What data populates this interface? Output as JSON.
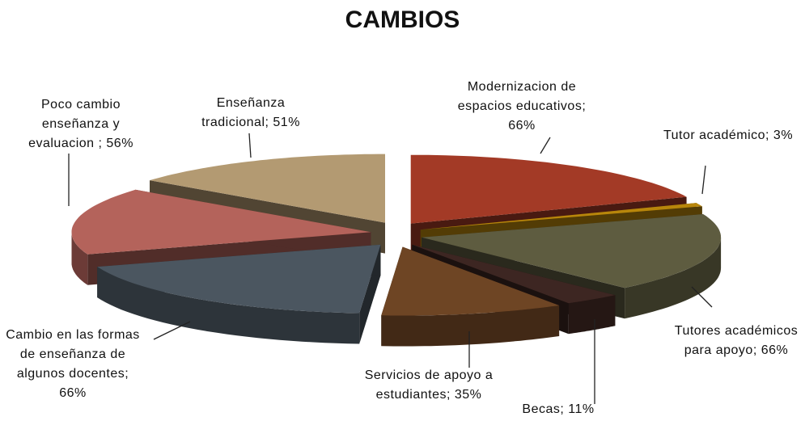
{
  "chart_data": {
    "type": "pie",
    "title": "CAMBIOS",
    "values": [
      66,
      3,
      66,
      11,
      35,
      66,
      56,
      51
    ],
    "value_labels": [
      "Modernizacion de espacios educativos; 66%",
      "Tutor académico; 3%",
      "Tutores académicos para apoyo; 66%",
      "Becas; 11%",
      "Servicios de apoyo a estudiantes; 35%",
      "Cambio en las formas de enseñanza de algunos docentes; 66%",
      "Poco cambio enseñanza y evaluacion ; 56%",
      "Enseñanza tradicional; 51%"
    ],
    "colors": [
      "#a33a26",
      "#b8860b",
      "#5e5c40",
      "#3d2622",
      "#6e4524",
      "#4b5660",
      "#b4635b",
      "#b39a72"
    ],
    "exploded": true,
    "three_d": true
  }
}
